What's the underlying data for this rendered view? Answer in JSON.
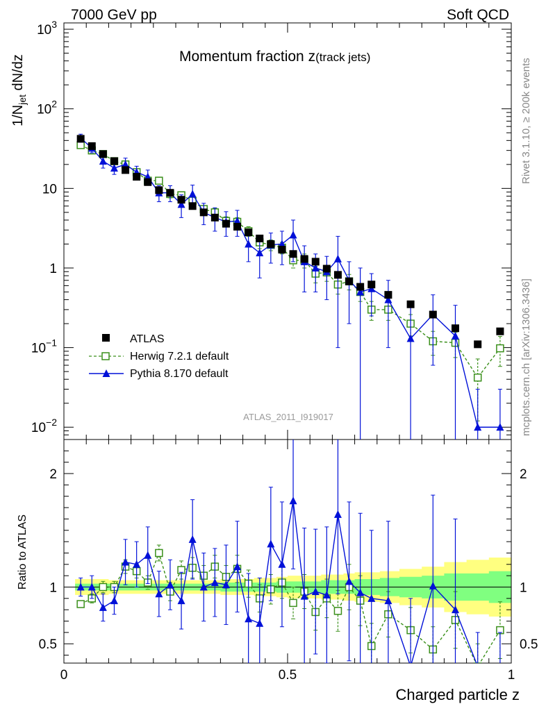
{
  "header": {
    "left": "7000 GeV pp",
    "right": "Soft QCD"
  },
  "side_labels": {
    "upper": "Rivet 3.1.10, ≥ 200k events",
    "lower": "mcplots.cern.ch [arXiv:1306.3436]"
  },
  "colors": {
    "atlas": "#000000",
    "herwig": "#3a8f1a",
    "pythia": "#0010d8",
    "band_yellow": "#ffff80",
    "band_green": "#80ff80"
  },
  "chart_data": {
    "type": "scatter",
    "title": "Momentum fraction z",
    "title_sub": "(track jets)",
    "analysis_tag": "ATLAS_2011_I919017",
    "xlabel": "Charged particle z",
    "ylabel_main": "1/N",
    "ylabel_sub": "jet",
    "ylabel_tail": " dN/dz",
    "ylabel_ratio": "Ratio to ATLAS",
    "xlim": [
      0,
      1
    ],
    "ylim": [
      0.007,
      1200
    ],
    "ratio_ylim": [
      0.33,
      2.3
    ],
    "x_tick_labels": [
      "0",
      "0.5",
      "1"
    ],
    "y_tick_labels": [
      {
        "base": "10",
        "exp": "−2",
        "value": 0.01
      },
      {
        "base": "10",
        "exp": "−1",
        "value": 0.1
      },
      {
        "base": "1",
        "exp": "",
        "value": 1
      },
      {
        "base": "10",
        "exp": "",
        "value": 10
      },
      {
        "base": "10",
        "exp": "2",
        "value": 100
      },
      {
        "base": "10",
        "exp": "3",
        "value": 1000
      }
    ],
    "ratio_tick_labels": [
      {
        "label": "0.5",
        "value": 0.5
      },
      {
        "label": "1",
        "value": 1
      },
      {
        "label": "2",
        "value": 2
      }
    ],
    "legend": [
      "ATLAS",
      "Herwig 7.2.1 default",
      "Pythia 8.170 default"
    ],
    "x": [
      0.0375,
      0.0625,
      0.0875,
      0.1125,
      0.1375,
      0.1625,
      0.1875,
      0.2125,
      0.2375,
      0.2625,
      0.2875,
      0.3125,
      0.3375,
      0.3625,
      0.3875,
      0.4125,
      0.4375,
      0.4625,
      0.4875,
      0.5125,
      0.5375,
      0.5625,
      0.5875,
      0.6125,
      0.6375,
      0.6625,
      0.6875,
      0.725,
      0.775,
      0.825,
      0.875,
      0.925,
      0.975
    ],
    "series": [
      {
        "name": "ATLAS",
        "values": [
          42,
          34,
          27,
          22,
          17,
          14,
          12,
          9.5,
          8.8,
          7.2,
          6.0,
          5.0,
          4.3,
          3.6,
          3.3,
          2.8,
          2.35,
          2.0,
          1.7,
          1.5,
          1.3,
          1.2,
          0.98,
          0.82,
          0.68,
          0.58,
          0.62,
          0.46,
          0.35,
          0.26,
          0.175,
          0.11,
          0.16
        ]
      },
      {
        "name": "Herwig 7.2.1 default",
        "values": [
          35,
          30,
          27,
          22,
          20,
          16,
          12.5,
          12.5,
          8.5,
          8.2,
          7.0,
          5.5,
          5.0,
          3.9,
          3.8,
          2.9,
          2.1,
          1.95,
          1.8,
          1.25,
          1.25,
          0.85,
          0.88,
          0.62,
          0.68,
          0.5,
          0.3,
          0.3,
          0.2,
          0.12,
          0.115,
          0.042,
          0.098
        ],
        "errors": [
          3,
          2,
          1.5,
          1.5,
          1.5,
          1.2,
          1,
          1.2,
          0.9,
          0.9,
          0.8,
          0.6,
          0.6,
          0.5,
          0.5,
          0.4,
          0.35,
          0.3,
          0.3,
          0.25,
          0.25,
          0.2,
          0.2,
          0.15,
          0.15,
          0.12,
          0.08,
          0.08,
          0.06,
          0.04,
          0.04,
          0.03,
          0.04
        ]
      },
      {
        "name": "Pythia 8.170 default",
        "values": [
          43,
          32,
          22,
          18,
          20,
          16,
          14,
          8.8,
          8.8,
          6.3,
          8.5,
          5.0,
          4.3,
          3.8,
          3.9,
          2.0,
          1.55,
          1.95,
          2.0,
          2.6,
          1.2,
          1.0,
          0.9,
          1.3,
          0.7,
          0.5,
          0.55,
          0.4,
          0.13,
          0.26,
          0.14,
          0.01,
          0.01
        ],
        "errors": [
          5,
          4,
          4,
          3,
          4,
          3,
          3,
          2,
          2,
          2,
          2.5,
          1.5,
          1.4,
          1.3,
          1.4,
          0.8,
          0.8,
          0.8,
          0.9,
          1.4,
          0.7,
          0.5,
          0.5,
          1.2,
          0.5,
          0.5,
          0.3,
          0.3,
          0.2,
          0.2,
          0.2,
          0.02,
          0.02
        ]
      }
    ],
    "ratio": {
      "herwig": [
        0.85,
        0.9,
        1.0,
        1.0,
        1.18,
        1.14,
        1.04,
        1.3,
        0.96,
        1.15,
        1.17,
        1.1,
        1.18,
        1.09,
        1.16,
        1.03,
        0.9,
        0.98,
        1.04,
        0.86,
        0.96,
        0.78,
        0.9,
        0.79,
        1.0,
        0.88,
        0.48,
        0.76,
        0.62,
        0.45,
        0.71,
        0.3,
        0.62
      ],
      "herwig_err": [
        0.03,
        0.04,
        0.05,
        0.05,
        0.06,
        0.06,
        0.06,
        0.07,
        0.08,
        0.08,
        0.09,
        0.09,
        0.1,
        0.1,
        0.12,
        0.12,
        0.12,
        0.13,
        0.14,
        0.14,
        0.15,
        0.16,
        0.17,
        0.18,
        0.2,
        0.22,
        0.2,
        0.2,
        0.2,
        0.2,
        0.25,
        0.2,
        0.25
      ],
      "pythia": [
        1.0,
        1.0,
        0.82,
        0.88,
        1.22,
        1.2,
        1.28,
        0.94,
        1.02,
        0.88,
        1.42,
        1.0,
        1.04,
        1.02,
        1.18,
        0.72,
        0.68,
        1.38,
        1.2,
        1.76,
        0.92,
        0.96,
        0.93,
        1.64,
        1.05,
        0.95,
        0.9,
        0.88,
        0.3,
        1.01,
        0.8,
        0.3,
        0.3
      ],
      "pythia_err": [
        0.08,
        0.1,
        0.12,
        0.12,
        0.2,
        0.2,
        0.25,
        0.2,
        0.22,
        0.25,
        0.35,
        0.3,
        0.3,
        0.35,
        0.4,
        0.4,
        0.4,
        0.5,
        0.55,
        0.6,
        0.6,
        0.55,
        0.6,
        0.7,
        0.7,
        0.7,
        0.6,
        0.7,
        0.6,
        0.8,
        0.8,
        0.3,
        0.3
      ],
      "band_inner": [
        0.03,
        0.03,
        0.03,
        0.03,
        0.03,
        0.03,
        0.03,
        0.03,
        0.03,
        0.03,
        0.03,
        0.03,
        0.03,
        0.04,
        0.04,
        0.04,
        0.04,
        0.04,
        0.05,
        0.05,
        0.05,
        0.05,
        0.06,
        0.06,
        0.06,
        0.07,
        0.07,
        0.08,
        0.09,
        0.1,
        0.12,
        0.12,
        0.14
      ],
      "band_outer": [
        0.07,
        0.07,
        0.07,
        0.06,
        0.06,
        0.06,
        0.06,
        0.06,
        0.06,
        0.06,
        0.06,
        0.06,
        0.06,
        0.07,
        0.07,
        0.07,
        0.08,
        0.08,
        0.09,
        0.1,
        0.1,
        0.1,
        0.11,
        0.11,
        0.12,
        0.13,
        0.13,
        0.14,
        0.16,
        0.18,
        0.22,
        0.24,
        0.26
      ]
    }
  }
}
